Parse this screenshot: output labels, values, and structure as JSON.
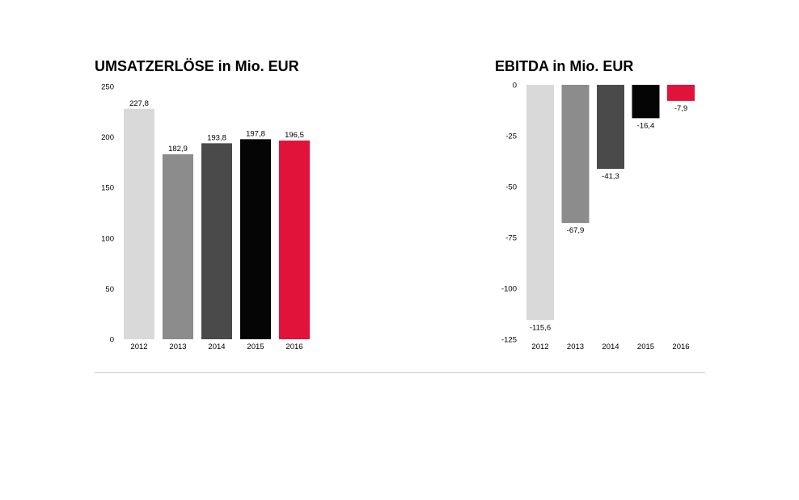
{
  "colors": [
    "#d9d9d9",
    "#8c8c8c",
    "#4a4a4a",
    "#050505",
    "#e2133b"
  ],
  "chart_data": [
    {
      "type": "bar",
      "title": "UMSATZERLÖSE in Mio. EUR",
      "categories": [
        "2012",
        "2013",
        "2014",
        "2015",
        "2016"
      ],
      "values": [
        227.8,
        182.9,
        193.8,
        197.8,
        196.5
      ],
      "value_labels": [
        "227,8",
        "182,9",
        "193,8",
        "197,8",
        "196,5"
      ],
      "ylim": [
        0,
        250
      ],
      "yticks": [
        0,
        50,
        100,
        150,
        200,
        250
      ],
      "ytick_labels": [
        "0",
        "50",
        "100",
        "150",
        "200",
        "250"
      ],
      "grid": false,
      "legend": "none"
    },
    {
      "type": "bar",
      "title": "EBITDA in Mio. EUR",
      "categories": [
        "2012",
        "2013",
        "2014",
        "2015",
        "2016"
      ],
      "values": [
        -115.6,
        -67.9,
        -41.3,
        -16.4,
        -7.9
      ],
      "value_labels": [
        "-115,6",
        "-67,9",
        "-41,3",
        "-16,4",
        "-7,9"
      ],
      "ylim": [
        -125,
        0
      ],
      "yticks": [
        0,
        -25,
        -50,
        -75,
        -100,
        -125
      ],
      "ytick_labels": [
        "0",
        "-25",
        "-50",
        "-75",
        "-100",
        "-125"
      ],
      "grid": false,
      "legend": "none"
    }
  ]
}
